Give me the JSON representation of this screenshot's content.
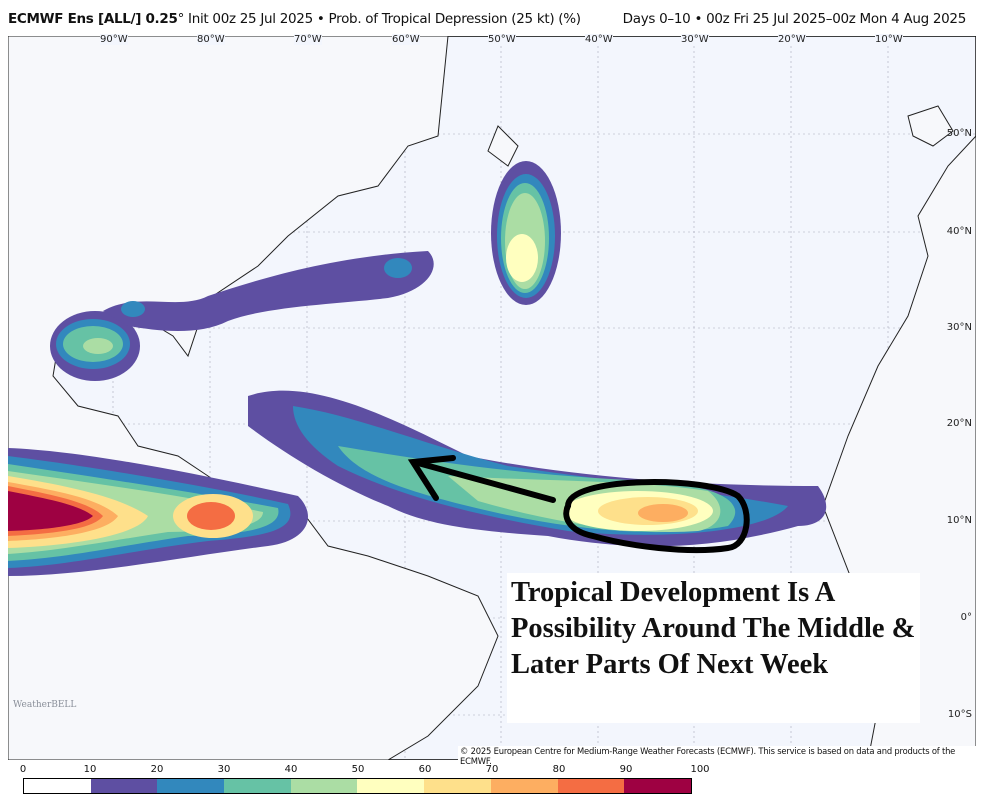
{
  "header": {
    "model": "ECMWF Ens [ALL/] 0.25",
    "degree": "°",
    "init": "Init 00z 25 Jul 2025",
    "product": "Prob. of Tropical Depression (25 kt) (%)",
    "valid": "Days 0–10 • 00z Fri 25 Jul 2025–00z Mon 4 Aug 2025"
  },
  "map": {
    "lon_labels": [
      "90°W",
      "80°W",
      "70°W",
      "60°W",
      "50°W",
      "40°W",
      "30°W",
      "20°W",
      "10°W"
    ],
    "lat_labels": [
      "50°N",
      "40°N",
      "30°N",
      "20°N",
      "10°N",
      "0°",
      "10°S"
    ],
    "copyright": "© 2025 European Centre for Medium-Range Weather Forecasts (ECMWF). This service is based on data and products of the ECMWF.",
    "annotation": "Tropical Development Is A Possibility Around The Middle & Later Parts Of Next Week",
    "logo_text": "WeatherBELL",
    "ocean_color": "#f3f6fd"
  },
  "colorbar": {
    "ticks": [
      "0",
      "10",
      "20",
      "30",
      "40",
      "50",
      "60",
      "70",
      "80",
      "90",
      "100"
    ],
    "colors": [
      "#ffffff",
      "#5e4fa2",
      "#3288bd",
      "#66c2a5",
      "#abdda4",
      "#ffffbf",
      "#fee08b",
      "#fdae61",
      "#f46d43",
      "#9e0142"
    ]
  }
}
